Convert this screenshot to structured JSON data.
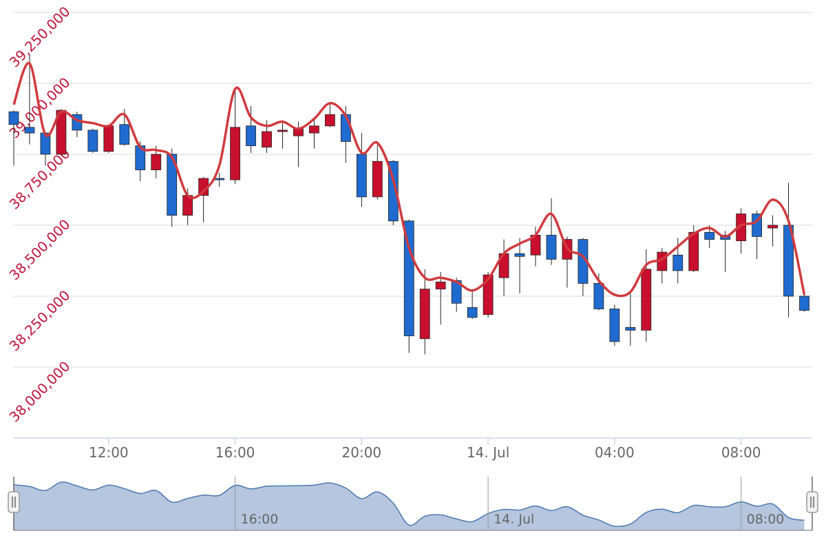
{
  "chart_data": {
    "type": "candlestick",
    "x": [
      9,
      9.5,
      10,
      10.5,
      11,
      11.5,
      12,
      12.5,
      13,
      13.5,
      14,
      14.5,
      15,
      15.5,
      16,
      16.5,
      17,
      17.5,
      18,
      18.5,
      19,
      19.5,
      20,
      20.5,
      21,
      21.5,
      22,
      22.5,
      23,
      23.5,
      24,
      24.5,
      25,
      25.5,
      26,
      26.5,
      27,
      27.5,
      28,
      28.5,
      29,
      29.5,
      30,
      30.5,
      31,
      31.5,
      32,
      32.5,
      33,
      33.5,
      34
    ],
    "series": [
      {
        "type": "candlestick",
        "up_color": "#c8102e",
        "down_color": "#1f6bcf",
        "open": [
          38900000,
          38845000,
          38825000,
          38750000,
          38890000,
          38835000,
          38760000,
          38855000,
          38780000,
          38695000,
          38750000,
          38535000,
          38605000,
          38665000,
          38660000,
          38850000,
          38775000,
          38830000,
          38815000,
          38825000,
          38850000,
          38890000,
          38750000,
          38600000,
          38725000,
          38515000,
          38100000,
          38275000,
          38305000,
          38210000,
          38185000,
          38315000,
          38400000,
          38395000,
          38465000,
          38380000,
          38450000,
          38295000,
          38205000,
          38140000,
          38130000,
          38340000,
          38395000,
          38340000,
          38475000,
          38465000,
          38445000,
          38540000,
          38490000,
          38500000,
          38250000
        ],
        "high": [
          38905000,
          39100000,
          38830000,
          38910000,
          38900000,
          38840000,
          38855000,
          38910000,
          38795000,
          38780000,
          38770000,
          38630000,
          38670000,
          38685000,
          38980000,
          38920000,
          38870000,
          38865000,
          38865000,
          38880000,
          38930000,
          38920000,
          38825000,
          38795000,
          38730000,
          38520000,
          38345000,
          38335000,
          38315000,
          38275000,
          38335000,
          38450000,
          38455000,
          38495000,
          38595000,
          38460000,
          38455000,
          38330000,
          38220000,
          38260000,
          38415000,
          38420000,
          38455000,
          38500000,
          38500000,
          38480000,
          38560000,
          38550000,
          38535000,
          38650000,
          38255000
        ],
        "low": [
          38710000,
          38785000,
          38710000,
          38745000,
          38810000,
          38755000,
          38755000,
          38780000,
          38655000,
          38665000,
          38495000,
          38500000,
          38510000,
          38635000,
          38645000,
          38755000,
          38755000,
          38770000,
          38705000,
          38770000,
          38845000,
          38720000,
          38565000,
          38590000,
          38500000,
          38050000,
          38045000,
          38150000,
          38195000,
          38170000,
          38175000,
          38250000,
          38260000,
          38355000,
          38360000,
          38280000,
          38250000,
          38200000,
          38075000,
          38075000,
          38090000,
          38295000,
          38295000,
          38335000,
          38420000,
          38335000,
          38400000,
          38380000,
          38425000,
          38175000,
          38195000
        ],
        "close": [
          38855000,
          38825000,
          38750000,
          38905000,
          38835000,
          38760000,
          38850000,
          38785000,
          38695000,
          38750000,
          38535000,
          38605000,
          38665000,
          38660000,
          38845000,
          38780000,
          38830000,
          38835000,
          38840000,
          38850000,
          38890000,
          38795000,
          38600000,
          38725000,
          38515000,
          38110000,
          38275000,
          38300000,
          38225000,
          38175000,
          38325000,
          38400000,
          38390000,
          38465000,
          38380000,
          38450000,
          38295000,
          38205000,
          38090000,
          38130000,
          38345000,
          38405000,
          38340000,
          38475000,
          38450000,
          38450000,
          38540000,
          38460000,
          38500000,
          38250000,
          38200000
        ]
      },
      {
        "type": "spline",
        "color": "#d13a3e",
        "values": [
          38925000,
          39070000,
          38820000,
          38900000,
          38870000,
          38860000,
          38850000,
          38890000,
          38775000,
          38765000,
          38740000,
          38605000,
          38620000,
          38710000,
          38980000,
          38880000,
          38850000,
          38865000,
          38840000,
          38875000,
          38930000,
          38885000,
          38755000,
          38790000,
          38660000,
          38420000,
          38315000,
          38315000,
          38300000,
          38270000,
          38310000,
          38400000,
          38435000,
          38465000,
          38540000,
          38420000,
          38390000,
          38305000,
          38255000,
          38265000,
          38360000,
          38380000,
          38425000,
          38470000,
          38490000,
          38460000,
          38500000,
          38515000,
          38590000,
          38515000,
          38255000
        ]
      }
    ],
    "xlim": [
      9,
      34.25
    ],
    "ylim": [
      37750000,
      39250000
    ],
    "xticks": [
      {
        "value": 12,
        "label": "12:00"
      },
      {
        "value": 16,
        "label": "16:00"
      },
      {
        "value": 20,
        "label": "20:00"
      },
      {
        "value": 24,
        "label": "14. Jul"
      },
      {
        "value": 28,
        "label": "04:00"
      },
      {
        "value": 32,
        "label": "08:00"
      }
    ],
    "yticks": [
      {
        "value": 38000000,
        "label": "38,000,000"
      },
      {
        "value": 38250000,
        "label": "38,250,000"
      },
      {
        "value": 38500000,
        "label": "38,500,000"
      },
      {
        "value": 38750000,
        "label": "38,750,000"
      },
      {
        "value": 39000000,
        "label": "39,000,000"
      },
      {
        "value": 39250000,
        "label": "39,250,000"
      }
    ],
    "grid": true,
    "navigator": true
  }
}
